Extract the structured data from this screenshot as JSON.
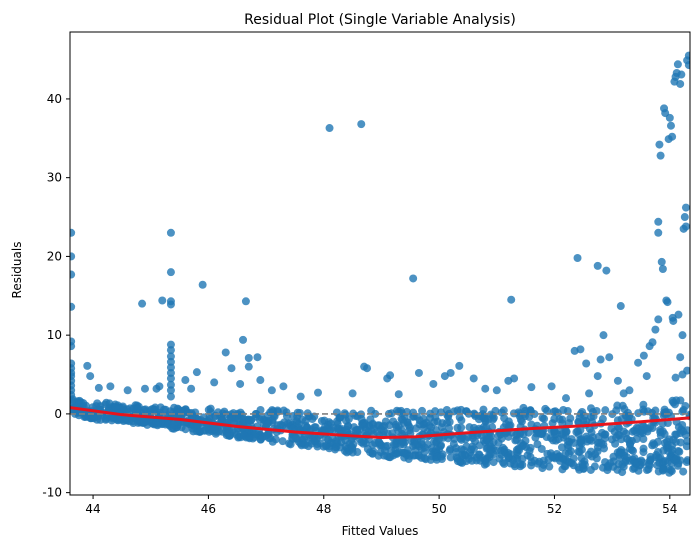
{
  "chart_data": {
    "type": "scatter",
    "title": "Residual Plot (Single Variable Analysis)",
    "xlabel": "Fitted Values",
    "ylabel": "Residuals",
    "xlim": [
      43.6,
      54.35
    ],
    "ylim": [
      -10.3,
      48.5
    ],
    "xticks": [
      44,
      46,
      48,
      50,
      52,
      54
    ],
    "yticks": [
      -10,
      0,
      10,
      20,
      30,
      40
    ],
    "grid": false,
    "colors": {
      "points": "#1f77b4",
      "trend": "#e8141c",
      "zero_line": "#808080"
    },
    "reference_line": {
      "y": 0,
      "style": "dashed"
    },
    "trend_line": {
      "x": [
        43.6,
        44.5,
        45.5,
        46.5,
        47.5,
        48.5,
        49.0,
        49.6,
        50.5,
        51.5,
        52.5,
        53.5,
        54.35
      ],
      "y": [
        0.8,
        -0.1,
        -0.7,
        -1.6,
        -2.3,
        -2.8,
        -3.0,
        -2.9,
        -2.4,
        -1.9,
        -1.5,
        -1.0,
        -0.5
      ]
    },
    "outliers": [
      {
        "x": 43.62,
        "y": 23.0
      },
      {
        "x": 43.62,
        "y": 20.0
      },
      {
        "x": 43.62,
        "y": 17.7
      },
      {
        "x": 43.62,
        "y": 13.6
      },
      {
        "x": 43.62,
        "y": 9.2
      },
      {
        "x": 43.62,
        "y": 8.6
      },
      {
        "x": 43.62,
        "y": 6.4
      },
      {
        "x": 43.62,
        "y": 5.8
      },
      {
        "x": 43.62,
        "y": 5.2
      },
      {
        "x": 43.62,
        "y": 4.8
      },
      {
        "x": 43.62,
        "y": 4.2
      },
      {
        "x": 43.62,
        "y": 3.6
      },
      {
        "x": 43.62,
        "y": 3.0
      },
      {
        "x": 43.62,
        "y": 2.4
      },
      {
        "x": 43.9,
        "y": 6.1
      },
      {
        "x": 43.95,
        "y": 4.8
      },
      {
        "x": 44.1,
        "y": 3.3
      },
      {
        "x": 44.3,
        "y": 3.5
      },
      {
        "x": 44.6,
        "y": 3.0
      },
      {
        "x": 44.9,
        "y": 3.2
      },
      {
        "x": 44.85,
        "y": 14.0
      },
      {
        "x": 45.2,
        "y": 14.4
      },
      {
        "x": 45.1,
        "y": 3.2
      },
      {
        "x": 45.15,
        "y": 3.5
      },
      {
        "x": 45.35,
        "y": 23.0
      },
      {
        "x": 45.35,
        "y": 18.0
      },
      {
        "x": 45.35,
        "y": 14.3
      },
      {
        "x": 45.35,
        "y": 13.9
      },
      {
        "x": 45.35,
        "y": 8.8
      },
      {
        "x": 45.35,
        "y": 8.1
      },
      {
        "x": 45.35,
        "y": 7.3
      },
      {
        "x": 45.35,
        "y": 6.6
      },
      {
        "x": 45.35,
        "y": 5.9
      },
      {
        "x": 45.35,
        "y": 5.2
      },
      {
        "x": 45.35,
        "y": 4.5
      },
      {
        "x": 45.35,
        "y": 3.7
      },
      {
        "x": 45.35,
        "y": 3.0
      },
      {
        "x": 45.35,
        "y": 2.2
      },
      {
        "x": 45.6,
        "y": 4.3
      },
      {
        "x": 45.7,
        "y": 3.2
      },
      {
        "x": 45.8,
        "y": 5.3
      },
      {
        "x": 45.9,
        "y": 16.4
      },
      {
        "x": 46.1,
        "y": 4.0
      },
      {
        "x": 46.3,
        "y": 7.8
      },
      {
        "x": 46.4,
        "y": 5.8
      },
      {
        "x": 46.55,
        "y": 3.8
      },
      {
        "x": 46.6,
        "y": 9.4
      },
      {
        "x": 46.65,
        "y": 14.3
      },
      {
        "x": 46.7,
        "y": 7.1
      },
      {
        "x": 46.7,
        "y": 6.0
      },
      {
        "x": 46.85,
        "y": 7.2
      },
      {
        "x": 46.9,
        "y": 4.3
      },
      {
        "x": 47.1,
        "y": 3.0
      },
      {
        "x": 47.3,
        "y": 3.5
      },
      {
        "x": 47.6,
        "y": 2.2
      },
      {
        "x": 47.9,
        "y": 2.7
      },
      {
        "x": 48.1,
        "y": 36.3
      },
      {
        "x": 48.65,
        "y": 36.8
      },
      {
        "x": 48.5,
        "y": 2.6
      },
      {
        "x": 48.7,
        "y": 6.0
      },
      {
        "x": 48.75,
        "y": 5.8
      },
      {
        "x": 49.1,
        "y": 4.5
      },
      {
        "x": 49.15,
        "y": 4.9
      },
      {
        "x": 49.3,
        "y": 2.5
      },
      {
        "x": 49.55,
        "y": 17.2
      },
      {
        "x": 49.65,
        "y": 5.2
      },
      {
        "x": 49.9,
        "y": 3.8
      },
      {
        "x": 50.1,
        "y": 4.8
      },
      {
        "x": 50.2,
        "y": 5.2
      },
      {
        "x": 50.35,
        "y": 6.1
      },
      {
        "x": 50.6,
        "y": 4.5
      },
      {
        "x": 50.8,
        "y": 3.2
      },
      {
        "x": 51.0,
        "y": 3.0
      },
      {
        "x": 51.2,
        "y": 4.2
      },
      {
        "x": 51.25,
        "y": 14.5
      },
      {
        "x": 51.3,
        "y": 4.5
      },
      {
        "x": 51.6,
        "y": 3.4
      },
      {
        "x": 51.95,
        "y": 3.5
      },
      {
        "x": 52.2,
        "y": 2.0
      },
      {
        "x": 52.35,
        "y": 8.0
      },
      {
        "x": 52.4,
        "y": 19.8
      },
      {
        "x": 52.45,
        "y": 8.2
      },
      {
        "x": 52.55,
        "y": 6.4
      },
      {
        "x": 52.6,
        "y": 2.6
      },
      {
        "x": 52.75,
        "y": 4.8
      },
      {
        "x": 52.75,
        "y": 18.8
      },
      {
        "x": 52.8,
        "y": 6.9
      },
      {
        "x": 52.85,
        "y": 10.0
      },
      {
        "x": 52.9,
        "y": 18.2
      },
      {
        "x": 52.95,
        "y": 7.2
      },
      {
        "x": 53.1,
        "y": 4.2
      },
      {
        "x": 53.15,
        "y": 13.7
      },
      {
        "x": 53.2,
        "y": 2.6
      },
      {
        "x": 53.3,
        "y": 3.0
      },
      {
        "x": 53.45,
        "y": 6.5
      },
      {
        "x": 53.55,
        "y": 7.4
      },
      {
        "x": 53.6,
        "y": 4.8
      },
      {
        "x": 53.65,
        "y": 8.6
      },
      {
        "x": 53.7,
        "y": 9.1
      },
      {
        "x": 53.75,
        "y": 10.7
      },
      {
        "x": 53.8,
        "y": 12.0
      },
      {
        "x": 53.8,
        "y": 24.4
      },
      {
        "x": 53.8,
        "y": 23.0
      },
      {
        "x": 53.82,
        "y": 34.2
      },
      {
        "x": 53.84,
        "y": 32.8
      },
      {
        "x": 53.86,
        "y": 19.3
      },
      {
        "x": 53.88,
        "y": 18.4
      },
      {
        "x": 53.9,
        "y": 38.8
      },
      {
        "x": 53.92,
        "y": 38.2
      },
      {
        "x": 53.94,
        "y": 14.4
      },
      {
        "x": 53.96,
        "y": 14.2
      },
      {
        "x": 53.98,
        "y": 34.9
      },
      {
        "x": 54.0,
        "y": 37.6
      },
      {
        "x": 54.02,
        "y": 36.6
      },
      {
        "x": 54.04,
        "y": 35.2
      },
      {
        "x": 54.05,
        "y": 12.2
      },
      {
        "x": 54.06,
        "y": 11.8
      },
      {
        "x": 54.08,
        "y": 42.2
      },
      {
        "x": 54.1,
        "y": 42.8
      },
      {
        "x": 54.12,
        "y": 43.3
      },
      {
        "x": 54.14,
        "y": 44.4
      },
      {
        "x": 54.15,
        "y": 12.6
      },
      {
        "x": 54.18,
        "y": 41.9
      },
      {
        "x": 54.2,
        "y": 43.1
      },
      {
        "x": 54.22,
        "y": 10.0
      },
      {
        "x": 54.24,
        "y": 23.5
      },
      {
        "x": 54.26,
        "y": 25.0
      },
      {
        "x": 54.28,
        "y": 26.2
      },
      {
        "x": 54.28,
        "y": 23.8
      },
      {
        "x": 54.3,
        "y": 44.9
      },
      {
        "x": 54.33,
        "y": 45.5
      },
      {
        "x": 54.33,
        "y": 44.3
      },
      {
        "x": 54.3,
        "y": 5.5
      },
      {
        "x": 54.22,
        "y": 5.0
      },
      {
        "x": 54.18,
        "y": 7.2
      },
      {
        "x": 54.1,
        "y": 4.6
      }
    ],
    "band": {
      "description_points": "dense cloud of residuals below the zero line",
      "x": [
        43.6,
        44.5,
        45.5,
        46.5,
        47.5,
        48.5,
        49.5,
        50.5,
        51.5,
        52.5,
        53.5,
        54.35
      ],
      "upper": [
        2.0,
        1.2,
        0.8,
        0.6,
        0.5,
        0.4,
        0.5,
        0.6,
        0.8,
        1.0,
        1.4,
        2.0
      ],
      "lower": [
        -0.5,
        -1.0,
        -2.0,
        -3.0,
        -4.0,
        -5.0,
        -5.8,
        -6.3,
        -6.8,
        -7.2,
        -7.5,
        -7.6
      ],
      "count": 1400
    }
  }
}
